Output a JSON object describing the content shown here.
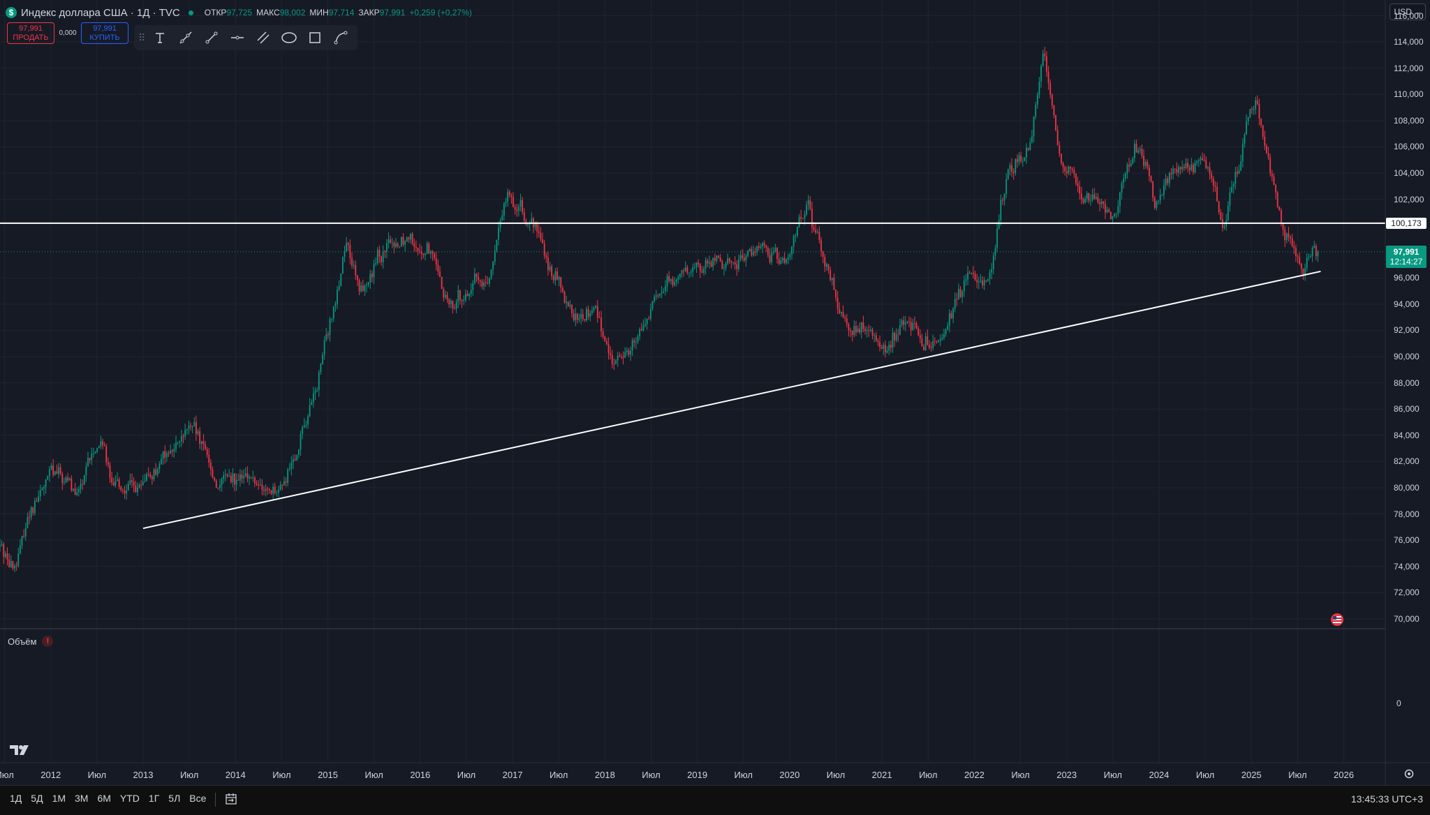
{
  "header": {
    "symbol_badge": "$",
    "title": "Индекс доллара США · 1Д · TVC",
    "ohlc": [
      {
        "key": "ОТКР",
        "value": "97,725"
      },
      {
        "key": "МАКС",
        "value": "98,002"
      },
      {
        "key": "МИН",
        "value": "97,714"
      },
      {
        "key": "ЗАКР",
        "value": "97,991"
      }
    ],
    "change": "+0,259 (+0,27%)"
  },
  "trade": {
    "sell_price": "97,991",
    "sell_label": "ПРОДАТЬ",
    "spread": "0,000",
    "buy_price": "97,991",
    "buy_label": "КУПИТЬ"
  },
  "currency": "USD",
  "price_axis": {
    "ticks": [
      "116,000",
      "114,000",
      "112,000",
      "110,000",
      "108,000",
      "106,000",
      "104,000",
      "102,000",
      "96,000",
      "94,000",
      "92,000",
      "90,000",
      "88,000",
      "86,000",
      "84,000",
      "82,000",
      "80,000",
      "78,000",
      "76,000",
      "74,000",
      "72,000",
      "70,000"
    ],
    "tick_values": [
      116,
      114,
      112,
      110,
      108,
      106,
      104,
      102,
      96,
      94,
      92,
      90,
      88,
      86,
      84,
      82,
      80,
      78,
      76,
      74,
      72,
      70
    ],
    "level_label": "100,173",
    "last_price": "97,991",
    "countdown": "12:14:27"
  },
  "volume": {
    "label": "Объём",
    "warning": "!",
    "zero_tick": "0"
  },
  "time_axis": [
    {
      "label": "Июл",
      "t": 2011.5
    },
    {
      "label": "2012",
      "t": 2012.0
    },
    {
      "label": "Июл",
      "t": 2012.5
    },
    {
      "label": "2013",
      "t": 2013.0
    },
    {
      "label": "Июл",
      "t": 2013.5
    },
    {
      "label": "2014",
      "t": 2014.0
    },
    {
      "label": "Июл",
      "t": 2014.5
    },
    {
      "label": "2015",
      "t": 2015.0
    },
    {
      "label": "Июл",
      "t": 2015.5
    },
    {
      "label": "2016",
      "t": 2016.0
    },
    {
      "label": "Июл",
      "t": 2016.5
    },
    {
      "label": "2017",
      "t": 2017.0
    },
    {
      "label": "Июл",
      "t": 2017.5
    },
    {
      "label": "2018",
      "t": 2018.0
    },
    {
      "label": "Июл",
      "t": 2018.5
    },
    {
      "label": "2019",
      "t": 2019.0
    },
    {
      "label": "Июл",
      "t": 2019.5
    },
    {
      "label": "2020",
      "t": 2020.0
    },
    {
      "label": "Июл",
      "t": 2020.5
    },
    {
      "label": "2021",
      "t": 2021.0
    },
    {
      "label": "Июл",
      "t": 2021.5
    },
    {
      "label": "2022",
      "t": 2022.0
    },
    {
      "label": "Июл",
      "t": 2022.5
    },
    {
      "label": "2023",
      "t": 2023.0
    },
    {
      "label": "Июл",
      "t": 2023.5
    },
    {
      "label": "2024",
      "t": 2024.0
    },
    {
      "label": "Июл",
      "t": 2024.5
    },
    {
      "label": "2025",
      "t": 2025.0
    },
    {
      "label": "Июл",
      "t": 2025.5
    },
    {
      "label": "2026",
      "t": 2026.0
    }
  ],
  "ranges": [
    "1Д",
    "5Д",
    "1М",
    "3М",
    "6М",
    "YTD",
    "1Г",
    "5Л",
    "Все"
  ],
  "clock": "13:45:33 UTC+3",
  "colors": {
    "up": "#089981",
    "down": "#f23645",
    "line": "#ffffff",
    "bg": "#161a25"
  },
  "icons": [
    "text-icon",
    "ray-icon",
    "trend-line-icon",
    "horizontal-ray-icon",
    "channel-icon",
    "ellipse-icon",
    "rectangle-icon",
    "path-icon",
    "calendar-goto-icon",
    "settings-gear-icon",
    "tradingview-logo-icon",
    "us-flag-event-icon"
  ],
  "chart_data": {
    "type": "candlestick",
    "title": "Индекс доллара США · 1Д · TVC",
    "x_range": [
      2011.45,
      2026.45
    ],
    "y_range": [
      69.3,
      117.2
    ],
    "anchors": [
      {
        "t": 2011.45,
        "v": 75.5
      },
      {
        "t": 2011.6,
        "v": 73.8
      },
      {
        "t": 2011.8,
        "v": 79.0
      },
      {
        "t": 2012.0,
        "v": 81.0
      },
      {
        "t": 2012.3,
        "v": 79.2
      },
      {
        "t": 2012.55,
        "v": 83.5
      },
      {
        "t": 2012.7,
        "v": 80.5
      },
      {
        "t": 2013.0,
        "v": 79.5
      },
      {
        "t": 2013.3,
        "v": 83.0
      },
      {
        "t": 2013.5,
        "v": 84.3
      },
      {
        "t": 2013.8,
        "v": 80.0
      },
      {
        "t": 2014.0,
        "v": 80.5
      },
      {
        "t": 2014.3,
        "v": 79.5
      },
      {
        "t": 2014.5,
        "v": 80.0
      },
      {
        "t": 2014.7,
        "v": 84.0
      },
      {
        "t": 2014.9,
        "v": 88.0
      },
      {
        "t": 2015.2,
        "v": 99.5
      },
      {
        "t": 2015.35,
        "v": 95.0
      },
      {
        "t": 2015.6,
        "v": 97.5
      },
      {
        "t": 2015.9,
        "v": 100.0
      },
      {
        "t": 2016.1,
        "v": 98.5
      },
      {
        "t": 2016.35,
        "v": 93.5
      },
      {
        "t": 2016.6,
        "v": 96.0
      },
      {
        "t": 2016.75,
        "v": 95.5
      },
      {
        "t": 2016.95,
        "v": 103.0
      },
      {
        "t": 2017.2,
        "v": 100.0
      },
      {
        "t": 2017.45,
        "v": 96.5
      },
      {
        "t": 2017.7,
        "v": 93.0
      },
      {
        "t": 2017.9,
        "v": 93.5
      },
      {
        "t": 2018.1,
        "v": 89.5
      },
      {
        "t": 2018.3,
        "v": 91.5
      },
      {
        "t": 2018.6,
        "v": 94.5
      },
      {
        "t": 2018.9,
        "v": 96.5
      },
      {
        "t": 2019.3,
        "v": 97.0
      },
      {
        "t": 2019.7,
        "v": 98.5
      },
      {
        "t": 2019.95,
        "v": 96.8
      },
      {
        "t": 2020.2,
        "v": 102.0
      },
      {
        "t": 2020.3,
        "v": 99.5
      },
      {
        "t": 2020.55,
        "v": 93.5
      },
      {
        "t": 2020.9,
        "v": 92.0
      },
      {
        "t": 2021.05,
        "v": 90.0
      },
      {
        "t": 2021.25,
        "v": 92.8
      },
      {
        "t": 2021.45,
        "v": 90.0
      },
      {
        "t": 2021.75,
        "v": 93.5
      },
      {
        "t": 2021.95,
        "v": 96.0
      },
      {
        "t": 2022.15,
        "v": 96.5
      },
      {
        "t": 2022.35,
        "v": 103.0
      },
      {
        "t": 2022.6,
        "v": 106.0
      },
      {
        "t": 2022.75,
        "v": 113.5
      },
      {
        "t": 2022.95,
        "v": 104.0
      },
      {
        "t": 2023.15,
        "v": 102.0
      },
      {
        "t": 2023.35,
        "v": 101.5
      },
      {
        "t": 2023.52,
        "v": 100.5
      },
      {
        "t": 2023.75,
        "v": 106.5
      },
      {
        "t": 2023.95,
        "v": 101.5
      },
      {
        "t": 2024.3,
        "v": 105.5
      },
      {
        "t": 2024.55,
        "v": 104.5
      },
      {
        "t": 2024.7,
        "v": 100.8
      },
      {
        "t": 2024.95,
        "v": 108.0
      },
      {
        "t": 2025.05,
        "v": 109.3
      },
      {
        "t": 2025.2,
        "v": 104.5
      },
      {
        "t": 2025.35,
        "v": 99.5
      },
      {
        "t": 2025.45,
        "v": 98.5
      },
      {
        "t": 2025.55,
        "v": 97.0
      },
      {
        "t": 2025.65,
        "v": 98.5
      },
      {
        "t": 2025.72,
        "v": 97.99
      }
    ],
    "horizontal_level": 100.173,
    "last_price": 97.991,
    "trendline": [
      {
        "t": 2013.0,
        "v": 76.9
      },
      {
        "t": 2025.75,
        "v": 96.5
      }
    ]
  }
}
